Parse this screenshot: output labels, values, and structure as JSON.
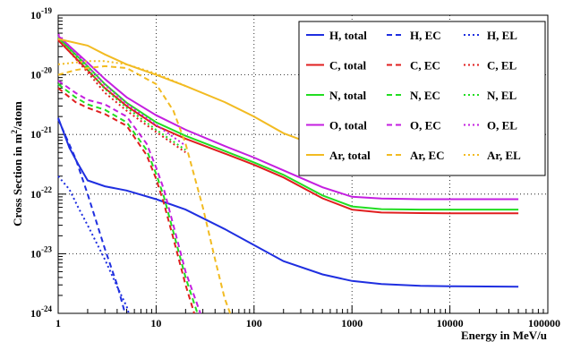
{
  "chart_data": {
    "type": "line",
    "xlabel": "Energy in MeV/u",
    "ylabel_main": "Cross Section in m",
    "ylabel_sup": "2",
    "ylabel_tail": "/atom",
    "x_scale": "log",
    "y_scale": "log",
    "xlim": [
      1,
      100000
    ],
    "ylim": [
      1e-24,
      1e-19
    ],
    "grid": true,
    "legend_position": "top-right",
    "x_ticks": [
      {
        "v": 1,
        "label": "1"
      },
      {
        "v": 10,
        "label": "10"
      },
      {
        "v": 100,
        "label": "100"
      },
      {
        "v": 1000,
        "label": "1000"
      },
      {
        "v": 10000,
        "label": "10000"
      },
      {
        "v": 100000,
        "label": "100000"
      }
    ],
    "y_ticks": [
      {
        "v": 1e-24,
        "base": "10",
        "exp": "-24"
      },
      {
        "v": 1e-23,
        "base": "10",
        "exp": "-23"
      },
      {
        "v": 1e-22,
        "base": "10",
        "exp": "-22"
      },
      {
        "v": 1e-21,
        "base": "10",
        "exp": "-21"
      },
      {
        "v": 1e-20,
        "base": "10",
        "exp": "-20"
      },
      {
        "v": 1e-19,
        "base": "10",
        "exp": "-19"
      }
    ],
    "series": [
      {
        "name": "H, total",
        "color": "#1f2fe0",
        "dash": "solid",
        "x": [
          1,
          1.3,
          1.6,
          2,
          3,
          5,
          10,
          20,
          50,
          100,
          200,
          500,
          1000,
          2000,
          5000,
          10000,
          50000
        ],
        "y": [
          1.9e-21,
          6e-22,
          3.2e-22,
          1.7e-22,
          1.35e-22,
          1.15e-22,
          8.2e-23,
          5.5e-23,
          2.6e-23,
          1.4e-23,
          7.5e-24,
          4.5e-24,
          3.5e-24,
          3.1e-24,
          2.9e-24,
          2.85e-24,
          2.8e-24
        ]
      },
      {
        "name": "H, EC",
        "color": "#1f2fe0",
        "dash": "dash",
        "x": [
          1,
          1.5,
          2,
          3,
          4,
          5
        ],
        "y": [
          1.8e-21,
          4e-22,
          1e-22,
          1.2e-23,
          3e-24,
          8e-25
        ]
      },
      {
        "name": "H, EL",
        "color": "#1f2fe0",
        "dash": "dot",
        "x": [
          1,
          1.3,
          1.6,
          2,
          3,
          4,
          5,
          5.5
        ],
        "y": [
          2e-22,
          1.2e-22,
          6e-23,
          3e-23,
          8e-24,
          2.8e-24,
          1.3e-24,
          8e-25
        ]
      },
      {
        "name": "C, total",
        "color": "#e01f1f",
        "dash": "solid",
        "x": [
          1,
          2,
          3,
          5,
          10,
          20,
          50,
          100,
          200,
          500,
          1000,
          2000,
          5000,
          10000,
          50000
        ],
        "y": [
          3.8e-20,
          1.2e-20,
          6e-21,
          3e-21,
          1.4e-21,
          8.5e-22,
          4.8e-22,
          3.1e-22,
          1.9e-22,
          8.5e-23,
          5.5e-23,
          4.9e-23,
          4.8e-23,
          4.75e-23,
          4.75e-23
        ]
      },
      {
        "name": "C, EC",
        "color": "#e01f1f",
        "dash": "dash",
        "x": [
          1,
          1.5,
          2,
          3,
          5,
          8,
          10,
          12,
          15,
          20,
          25
        ],
        "y": [
          6e-21,
          3.5e-21,
          2.8e-21,
          2.2e-21,
          1.4e-21,
          4.5e-22,
          1.8e-22,
          7e-23,
          1.8e-23,
          3e-24,
          9e-25
        ]
      },
      {
        "name": "C, EL",
        "color": "#e01f1f",
        "dash": "dot",
        "x": [
          1,
          2,
          3,
          5,
          10,
          20
        ],
        "y": [
          4e-20,
          1.1e-20,
          5e-21,
          2.5e-21,
          1.1e-21,
          5e-22
        ]
      },
      {
        "name": "N, total",
        "color": "#22dd22",
        "dash": "solid",
        "x": [
          1,
          2,
          3,
          5,
          10,
          20,
          50,
          100,
          200,
          500,
          1000,
          2000,
          5000,
          10000,
          50000
        ],
        "y": [
          4.2e-20,
          1.4e-20,
          7e-21,
          3.4e-21,
          1.6e-21,
          9.5e-22,
          5.3e-22,
          3.4e-22,
          2.1e-22,
          9.5e-23,
          6.2e-23,
          5.6e-23,
          5.5e-23,
          5.5e-23,
          5.5e-23
        ]
      },
      {
        "name": "N, EC",
        "color": "#22dd22",
        "dash": "dash",
        "x": [
          1,
          1.5,
          2,
          3,
          5,
          8,
          10,
          12,
          15,
          20,
          27
        ],
        "y": [
          7e-21,
          4.2e-21,
          3.2e-21,
          2.6e-21,
          1.6e-21,
          5.5e-22,
          2.2e-22,
          9e-23,
          2.3e-23,
          4e-24,
          9e-25
        ]
      },
      {
        "name": "N, EL",
        "color": "#22dd22",
        "dash": "dot",
        "x": [
          1,
          2,
          3,
          5,
          10,
          20
        ],
        "y": [
          4.4e-20,
          1.25e-20,
          5.8e-21,
          2.8e-21,
          1.2e-21,
          5.5e-22
        ]
      },
      {
        "name": "O, total",
        "color": "#c41fe0",
        "dash": "solid",
        "x": [
          1,
          2,
          3,
          5,
          10,
          20,
          50,
          100,
          200,
          500,
          1000,
          2000,
          5000,
          10000,
          50000
        ],
        "y": [
          4.5e-20,
          1.6e-20,
          8.5e-21,
          4.2e-21,
          2.1e-21,
          1.2e-21,
          6.4e-22,
          4.1e-22,
          2.5e-22,
          1.3e-22,
          9e-23,
          8.4e-23,
          8.2e-23,
          8.2e-23,
          8.2e-23
        ]
      },
      {
        "name": "O, EC",
        "color": "#c41fe0",
        "dash": "dash",
        "x": [
          1,
          1.5,
          2,
          3,
          5,
          8,
          10,
          12,
          15,
          20,
          29
        ],
        "y": [
          8e-21,
          5e-21,
          3.8e-21,
          3.2e-21,
          2e-21,
          7e-22,
          2.8e-22,
          1.2e-22,
          3e-23,
          5e-24,
          9e-25
        ]
      },
      {
        "name": "O, EL",
        "color": "#c41fe0",
        "dash": "dot",
        "x": [
          1,
          2,
          3,
          5,
          10,
          20
        ],
        "y": [
          4.8e-20,
          1.4e-20,
          6.8e-21,
          3.3e-21,
          1.45e-21,
          6.5e-22
        ]
      },
      {
        "name": "Ar, total",
        "color": "#f2bb22",
        "dash": "solid",
        "x": [
          1,
          2,
          3,
          5,
          10,
          20,
          50,
          100,
          200,
          500,
          1000,
          2000,
          5000,
          10000,
          50000
        ],
        "y": [
          4e-20,
          3.1e-20,
          2.2e-20,
          1.5e-20,
          1e-20,
          6.5e-21,
          3.5e-21,
          2e-21,
          1.05e-21,
          6e-22,
          4.5e-22,
          3.8e-22,
          3.5e-22,
          3.5e-22,
          3.5e-22
        ]
      },
      {
        "name": "Ar, EC",
        "color": "#f2bb22",
        "dash": "dash",
        "x": [
          1,
          1.5,
          2,
          3,
          5,
          10,
          15,
          20,
          30,
          40,
          50,
          60
        ],
        "y": [
          1e-20,
          1.2e-20,
          1.3e-20,
          1.4e-20,
          1.3e-20,
          7e-21,
          2.5e-21,
          7e-22,
          6e-23,
          8e-24,
          1.8e-24,
          8e-25
        ]
      },
      {
        "name": "Ar, EL",
        "color": "#f2bb22",
        "dash": "dot",
        "x": [
          1,
          2,
          3,
          5,
          10,
          20
        ],
        "y": [
          1.5e-20,
          1.7e-20,
          1.7e-20,
          1.5e-20,
          1.05e-20,
          6.5e-21
        ]
      }
    ]
  }
}
